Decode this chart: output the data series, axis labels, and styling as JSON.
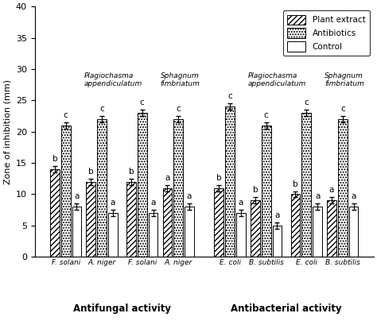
{
  "groups": [
    {
      "label": "F. solani",
      "section": "Antifungal",
      "plant_idx": 0,
      "values": [
        14,
        21,
        8
      ],
      "letters": [
        "b",
        "c",
        "a"
      ]
    },
    {
      "label": "A. niger",
      "section": "Antifungal",
      "plant_idx": 0,
      "values": [
        12,
        22,
        7
      ],
      "letters": [
        "b",
        "c",
        "a"
      ]
    },
    {
      "label": "F. solani",
      "section": "Antifungal",
      "plant_idx": 1,
      "values": [
        12,
        23,
        7
      ],
      "letters": [
        "b",
        "c",
        "a"
      ]
    },
    {
      "label": "A. niger",
      "section": "Antifungal",
      "plant_idx": 1,
      "values": [
        11,
        22,
        8
      ],
      "letters": [
        "a",
        "c",
        "a"
      ]
    },
    {
      "label": "E. coli",
      "section": "Antibacterial",
      "plant_idx": 2,
      "values": [
        11,
        24,
        7
      ],
      "letters": [
        "b",
        "c",
        "a"
      ]
    },
    {
      "label": "B. subtilis",
      "section": "Antibacterial",
      "plant_idx": 2,
      "values": [
        9,
        21,
        5
      ],
      "letters": [
        "b",
        "c",
        "a"
      ]
    },
    {
      "label": "E. coli",
      "section": "Antibacterial",
      "plant_idx": 3,
      "values": [
        10,
        23,
        8
      ],
      "letters": [
        "b",
        "c",
        "a"
      ]
    },
    {
      "label": "B. subtilis",
      "section": "Antibacterial",
      "plant_idx": 3,
      "values": [
        9,
        22,
        8
      ],
      "letters": [
        "a",
        "c",
        "a"
      ]
    }
  ],
  "plant_labels": [
    "Plagiochasma\nappendiculatum",
    "Sphagnum\nfimbriatum",
    "Plagiochasma\nappendiculatum",
    "Sphagnum\nfimbriatum"
  ],
  "series_labels": [
    "Plant extract",
    "Antibiotics",
    "Control"
  ],
  "hatch_patterns": [
    "/////",
    ".....",
    "====="
  ],
  "bar_colors": [
    "white",
    "white",
    "white"
  ],
  "bar_edgecolors": [
    "black",
    "black",
    "black"
  ],
  "ylabel": "Zone of inhibition (mm)",
  "ylim": [
    0,
    40
  ],
  "yticks": [
    0,
    5,
    10,
    15,
    20,
    25,
    30,
    35,
    40
  ],
  "bar_width": 0.23,
  "antifungal_label": "Antifungal activity",
  "antibacterial_label": "Antibacterial activity",
  "error_bar_cap": 0.5,
  "errorbar_vals": [
    0.5,
    0.5,
    0.5,
    0.5,
    0.5,
    0.5,
    0.5,
    0.5
  ]
}
